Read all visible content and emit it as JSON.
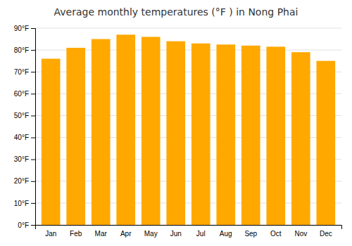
{
  "chart_data": {
    "type": "bar",
    "title": "Average monthly temperatures (°F ) in Nong Phai",
    "categories": [
      "Jan",
      "Feb",
      "Mar",
      "Apr",
      "May",
      "Jun",
      "Jul",
      "Aug",
      "Sep",
      "Oct",
      "Nov",
      "Dec"
    ],
    "values": [
      76,
      81,
      85,
      87,
      86,
      84,
      83,
      82.5,
      82,
      81.5,
      79,
      75
    ],
    "color": "#FFA800",
    "ylim": [
      0,
      90
    ],
    "yticks": [
      {
        "value": 0,
        "label": "0°F"
      },
      {
        "value": 10,
        "label": "10°F"
      },
      {
        "value": 20,
        "label": "20°F"
      },
      {
        "value": 30,
        "label": "30°F"
      },
      {
        "value": 40,
        "label": "40°F"
      },
      {
        "value": 50,
        "label": "50°F"
      },
      {
        "value": 60,
        "label": "60°F"
      },
      {
        "value": 70,
        "label": "70°F"
      },
      {
        "value": 80,
        "label": "80°F"
      },
      {
        "value": 90,
        "label": "90°F"
      }
    ],
    "grid": true
  }
}
